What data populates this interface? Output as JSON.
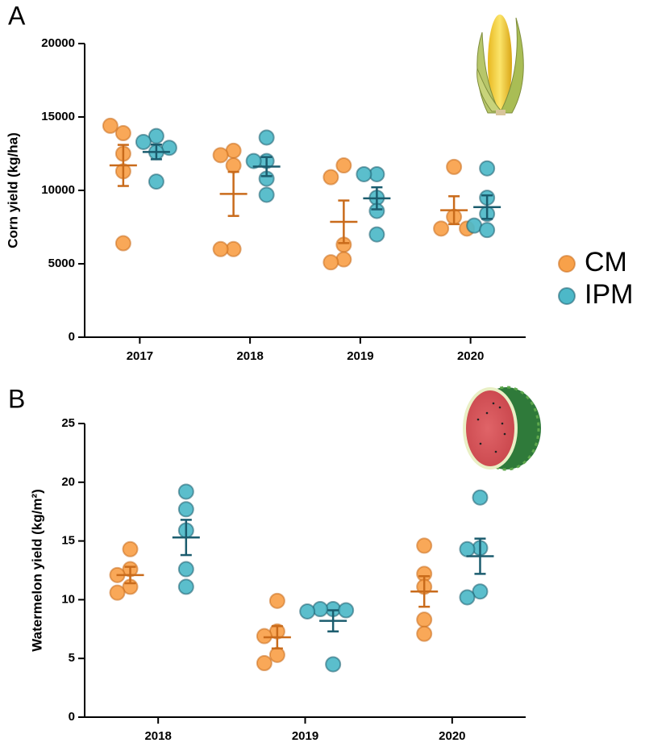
{
  "chart_data": [
    {
      "type": "dot",
      "label": "A",
      "ylabel": "Corn yield (kg/ha)",
      "categories": [
        "2017",
        "2018",
        "2019",
        "2020"
      ],
      "ylim": [
        0,
        20000
      ],
      "yticks": [
        0,
        5000,
        10000,
        15000,
        20000
      ],
      "legend": "right",
      "series": [
        {
          "name": "CM",
          "color": "#f8a14a",
          "line_color": "#c96b1b",
          "values": [
            [
              13900,
              14400,
              12500,
              11300,
              6400
            ],
            [
              12700,
              12400,
              11700,
              6000,
              6000
            ],
            [
              11700,
              10900,
              6300,
              5300,
              5100
            ],
            [
              11600,
              8200,
              7400,
              7400
            ]
          ],
          "means": [
            11700,
            9760,
            7860,
            8650
          ],
          "errors": [
            1400,
            1500,
            1450,
            950
          ]
        },
        {
          "name": "IPM",
          "color": "#4db8c8",
          "line_color": "#1b5c6e",
          "values": [
            [
              13700,
              13300,
              12900,
              12600,
              10600
            ],
            [
              13600,
              12000,
              12000,
              10800,
              9700
            ],
            [
              11100,
              11100,
              9500,
              8600,
              7000
            ],
            [
              11500,
              9500,
              8400,
              7600,
              7300
            ]
          ],
          "means": [
            12620,
            11620,
            9460,
            8860
          ],
          "errors": [
            500,
            650,
            750,
            800
          ]
        }
      ]
    },
    {
      "type": "dot",
      "label": "B",
      "ylabel": "Watermelon yield (kg/m²)",
      "categories": [
        "2018",
        "2019",
        "2020"
      ],
      "ylim": [
        0,
        25
      ],
      "yticks": [
        0,
        5,
        10,
        15,
        20,
        25
      ],
      "series": [
        {
          "color": "#f8a14a",
          "line_color": "#c96b1b",
          "values": [
            [
              14.3,
              12.6,
              12.1,
              11.1,
              10.6
            ],
            [
              9.9,
              7.3,
              6.9,
              5.3,
              4.6
            ],
            [
              14.6,
              12.2,
              11.1,
              8.3,
              7.1
            ]
          ],
          "means": [
            12.1,
            6.8,
            10.7
          ],
          "errors": [
            0.7,
            0.95,
            1.3
          ]
        },
        {
          "color": "#4db8c8",
          "line_color": "#1b5c6e",
          "values": [
            [
              19.2,
              17.7,
              15.9,
              12.6,
              11.1
            ],
            [
              9.2,
              9.2,
              9.1,
              9.0,
              4.5
            ],
            [
              18.7,
              14.4,
              14.3,
              10.7,
              10.2
            ]
          ],
          "means": [
            15.3,
            8.2,
            13.7
          ],
          "errors": [
            1.5,
            0.9,
            1.5
          ]
        }
      ]
    }
  ]
}
